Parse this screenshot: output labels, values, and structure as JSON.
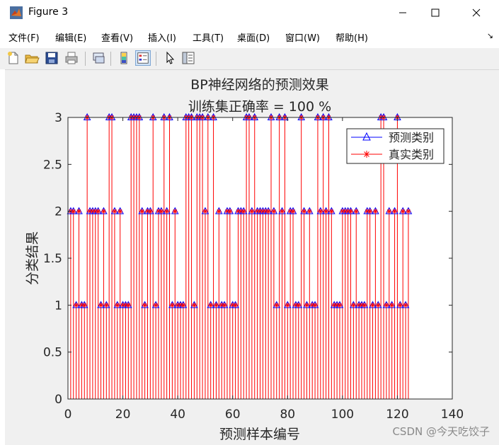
{
  "window": {
    "title": "Figure 3",
    "icon": "matlab-icon"
  },
  "menu": [
    "文件(F)",
    "编辑(E)",
    "查看(V)",
    "插入(I)",
    "工具(T)",
    "桌面(D)",
    "窗口(W)",
    "帮助(H)"
  ],
  "toolbar": [
    "new-figure-icon",
    "open-icon",
    "save-icon",
    "print-icon",
    "link-plot-icon",
    "colorbar-icon",
    "legend-icon",
    "pointer-icon",
    "property-editor-icon"
  ],
  "watermark": "CSDN @今天吃饺子",
  "chart_data": {
    "type": "stem",
    "title": "BP神经网络的预测效果",
    "subtitle": "训练集正确率 = 100 %",
    "xlabel": "预测样本编号",
    "ylabel": "分类结果",
    "xlim": [
      0,
      140
    ],
    "ylim": [
      0,
      3
    ],
    "xticks": [
      "0",
      "20",
      "40",
      "60",
      "80",
      "100",
      "120",
      "140"
    ],
    "yticks": [
      "0",
      "0.5",
      "1",
      "1.5",
      "2",
      "2.5",
      "3"
    ],
    "legend_position": "top-right",
    "series": [
      {
        "name": "预测类别",
        "marker": "triangle",
        "color": "#0000ff"
      },
      {
        "name": "真实类别",
        "marker": "asterisk",
        "color": "#ff0000"
      }
    ],
    "x": [
      1,
      2,
      3,
      4,
      5,
      6,
      7,
      8,
      9,
      10,
      11,
      12,
      13,
      14,
      15,
      16,
      17,
      18,
      19,
      20,
      21,
      22,
      23,
      24,
      25,
      26,
      27,
      28,
      29,
      30,
      31,
      32,
      33,
      34,
      35,
      36,
      37,
      38,
      39,
      40,
      41,
      42,
      43,
      44,
      45,
      46,
      47,
      48,
      49,
      50,
      51,
      52,
      53,
      54,
      55,
      56,
      57,
      58,
      59,
      60,
      61,
      62,
      63,
      64,
      65,
      66,
      67,
      68,
      69,
      70,
      71,
      72,
      73,
      74,
      75,
      76,
      77,
      78,
      79,
      80,
      81,
      82,
      83,
      84,
      85,
      86,
      87,
      88,
      89,
      90,
      91,
      92,
      93,
      94,
      95,
      96,
      97,
      98,
      99,
      100,
      101,
      102,
      103,
      104,
      105,
      106,
      107,
      108,
      109,
      110,
      111,
      112,
      113,
      114,
      115,
      116,
      117,
      118,
      119,
      120,
      121,
      122,
      123,
      124
    ],
    "values": [
      2,
      2,
      1,
      2,
      1,
      1,
      3,
      2,
      2,
      2,
      2,
      1,
      2,
      1,
      3,
      3,
      2,
      1,
      2,
      1,
      1,
      1,
      3,
      3,
      3,
      3,
      2,
      1,
      2,
      2,
      3,
      1,
      2,
      2,
      3,
      2,
      3,
      1,
      2,
      1,
      1,
      1,
      3,
      3,
      3,
      1,
      3,
      3,
      3,
      2,
      3,
      1,
      3,
      1,
      2,
      1,
      1,
      2,
      2,
      1,
      1,
      2,
      2,
      2,
      3,
      3,
      2,
      3,
      2,
      2,
      2,
      2,
      2,
      3,
      2,
      1,
      3,
      2,
      3,
      1,
      2,
      2,
      1,
      1,
      3,
      2,
      1,
      2,
      1,
      1,
      3,
      2,
      3,
      2,
      3,
      2,
      1,
      1,
      1,
      2,
      2,
      2,
      2,
      1,
      2,
      1,
      1,
      1,
      2,
      2,
      1,
      2,
      1,
      3,
      3,
      1,
      2,
      1,
      2,
      3,
      1,
      2,
      1,
      2
    ]
  }
}
